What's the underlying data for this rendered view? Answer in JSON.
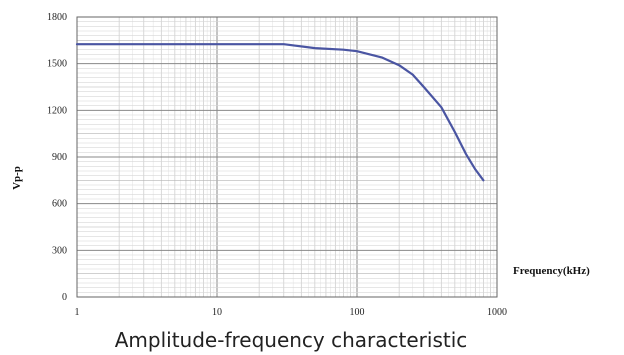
{
  "chart_data": {
    "type": "line",
    "title": "",
    "caption": "Amplitude-frequency characteristic",
    "xlabel": "Frequency(kHz)",
    "ylabel": "Vp-p",
    "x_scale": "log",
    "xlim": [
      1,
      1000
    ],
    "ylim": [
      0,
      1800
    ],
    "x_ticks": [
      1,
      10,
      100,
      1000
    ],
    "x_tick_labels": [
      "1",
      "10",
      "100",
      "1000"
    ],
    "y_ticks": [
      0,
      300,
      600,
      900,
      1200,
      1500,
      1800
    ],
    "y_tick_labels": [
      "0",
      "300",
      "600",
      "900",
      "1200",
      "1500",
      "1800"
    ],
    "grid": true,
    "line_color": "#4a55a2",
    "series": [
      {
        "x": [
          1,
          10,
          20,
          30,
          50,
          80,
          100,
          150,
          200,
          250,
          300,
          400,
          500,
          600,
          700,
          800
        ],
        "y": [
          1625,
          1625,
          1625,
          1625,
          1600,
          1590,
          1580,
          1540,
          1490,
          1430,
          1350,
          1220,
          1060,
          920,
          820,
          750
        ]
      }
    ]
  }
}
